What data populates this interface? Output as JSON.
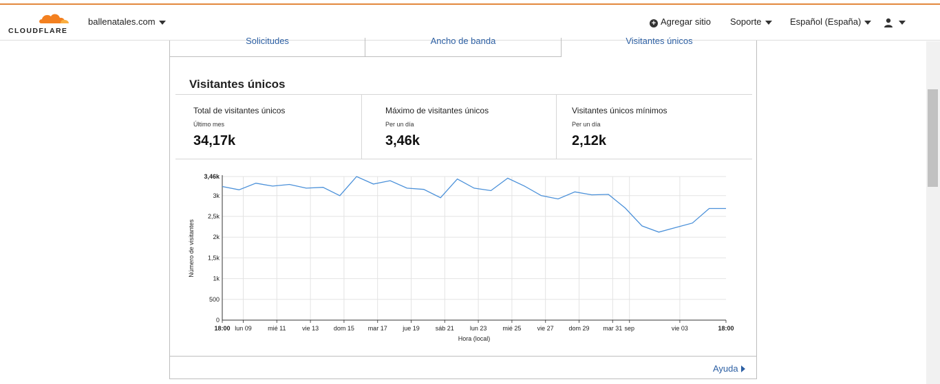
{
  "header": {
    "logo_text": "CLOUDFLARE",
    "domain": "ballenatales.com",
    "add_site": "Agregar sitio",
    "support": "Soporte",
    "language": "Español (España)"
  },
  "tabs": [
    {
      "label": "Solicitudes"
    },
    {
      "label": "Ancho de banda"
    },
    {
      "label": "Visitantes únicos"
    }
  ],
  "section": {
    "title": "Visitantes únicos",
    "stats": [
      {
        "label": "Total de visitantes únicos",
        "sub": "Último mes",
        "value": "34,17k"
      },
      {
        "label": "Máximo de visitantes únicos",
        "sub": "Per un día",
        "value": "3,46k"
      },
      {
        "label": "Visitantes únicos mínimos",
        "sub": "Per un día",
        "value": "2,12k"
      }
    ]
  },
  "footer": {
    "help": "Ayuda"
  },
  "colors": {
    "accent": "#e2873b",
    "line": "#4a90d9",
    "link": "#2c5fa3"
  },
  "chart_data": {
    "type": "line",
    "xlabel": "Hora (local)",
    "ylabel": "Número de visitantes",
    "ylim": [
      0,
      3460
    ],
    "y_ticks": [
      0,
      500,
      1000,
      1500,
      2000,
      2500,
      3000
    ],
    "y_tick_labels": [
      "0",
      "500",
      "1k",
      "1,5k",
      "2k",
      "2,5k",
      "3k"
    ],
    "y_max_label": "3,46k",
    "x_ticks": [
      {
        "label": "18:00",
        "day": 0,
        "bold": true
      },
      {
        "label": "lun 09",
        "day": 1.25
      },
      {
        "label": "mié 11",
        "day": 3.25
      },
      {
        "label": "vie 13",
        "day": 5.25
      },
      {
        "label": "dom 15",
        "day": 7.25
      },
      {
        "label": "mar 17",
        "day": 9.25
      },
      {
        "label": "jue 19",
        "day": 11.25
      },
      {
        "label": "sáb 21",
        "day": 13.25
      },
      {
        "label": "lun 23",
        "day": 15.25
      },
      {
        "label": "mié 25",
        "day": 17.25
      },
      {
        "label": "vie 27",
        "day": 19.25
      },
      {
        "label": "dom 29",
        "day": 21.25
      },
      {
        "label": "mar 31",
        "day": 23.25
      },
      {
        "label": "sep",
        "day": 24.25
      },
      {
        "label": "vie 03",
        "day": 27.25
      },
      {
        "label": "18:00",
        "day": 30,
        "bold": true
      }
    ],
    "series": [
      {
        "x": [
          0,
          1,
          2,
          3,
          4,
          5,
          6,
          7,
          8,
          9,
          10,
          11,
          12,
          13,
          14,
          15,
          16,
          17,
          18,
          19,
          20,
          21,
          22,
          23,
          24,
          25,
          26,
          27,
          28,
          29,
          30
        ],
        "values": [
          3220,
          3140,
          3300,
          3230,
          3270,
          3180,
          3200,
          3000,
          3460,
          3280,
          3360,
          3180,
          3150,
          2950,
          3400,
          3180,
          3120,
          3420,
          3230,
          3000,
          2920,
          3090,
          3020,
          3030,
          2700,
          2270,
          2120,
          2230,
          2340,
          2690,
          2690
        ]
      }
    ],
    "grid": true
  }
}
